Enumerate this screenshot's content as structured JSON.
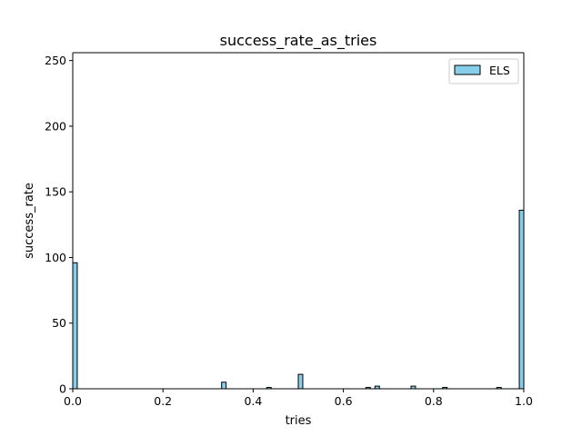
{
  "chart_data": {
    "type": "bar",
    "title": "success_rate_as_tries",
    "xlabel": "tries",
    "ylabel": "success_rate",
    "xlim": [
      0,
      1
    ],
    "ylim": [
      0,
      256
    ],
    "x_ticks": [
      0.0,
      0.2,
      0.4,
      0.6,
      0.8,
      1.0
    ],
    "x_tick_labels": [
      "0.0",
      "0.2",
      "0.4",
      "0.6",
      "0.8",
      "1.0"
    ],
    "y_ticks": [
      0,
      50,
      100,
      150,
      200,
      250
    ],
    "y_tick_labels": [
      "0",
      "50",
      "100",
      "150",
      "200",
      "250"
    ],
    "bin_width": 0.01,
    "grid": false,
    "legend_position": "top-right",
    "series": [
      {
        "name": "ELS",
        "color": "#87CEEB",
        "edge_color": "#000000",
        "bins": [
          {
            "x": 0.0,
            "count": 96
          },
          {
            "x": 0.33,
            "count": 5
          },
          {
            "x": 0.43,
            "count": 1
          },
          {
            "x": 0.5,
            "count": 11
          },
          {
            "x": 0.65,
            "count": 1
          },
          {
            "x": 0.67,
            "count": 2
          },
          {
            "x": 0.75,
            "count": 2
          },
          {
            "x": 0.82,
            "count": 1
          },
          {
            "x": 0.94,
            "count": 1
          },
          {
            "x": 0.99,
            "count": 136
          }
        ]
      }
    ]
  }
}
